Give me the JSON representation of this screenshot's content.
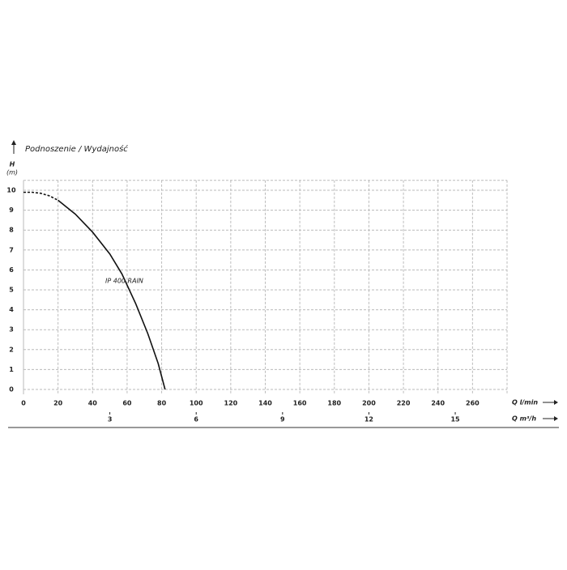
{
  "chart_data": {
    "type": "line",
    "title": "Podnoszenie / Wydajność",
    "y_label": "H",
    "y_unit": "(m)",
    "x_label": "Q l/min",
    "x2_label": "Q m³/h",
    "xlim": [
      0,
      280
    ],
    "xticks": [
      0,
      20,
      40,
      60,
      80,
      100,
      120,
      140,
      160,
      180,
      200,
      220,
      240,
      260
    ],
    "x2lim": [
      0,
      16.8
    ],
    "x2ticks": [
      3,
      6,
      9,
      12,
      15
    ],
    "ylim": [
      0,
      10.5
    ],
    "yticks": [
      0,
      1,
      2,
      3,
      4,
      5,
      6,
      7,
      8,
      9,
      10
    ],
    "grid": true,
    "series": [
      {
        "style": "dashed",
        "color": "#111111",
        "x": [
          0,
          5,
          10,
          15,
          20
        ],
        "values": [
          9.9,
          9.9,
          9.85,
          9.72,
          9.5
        ]
      },
      {
        "name": "IP 400 RAIN",
        "style": "solid",
        "color": "#111111",
        "x": [
          20,
          30,
          40,
          50,
          57,
          65,
          72,
          78,
          82
        ],
        "values": [
          9.5,
          8.8,
          7.9,
          6.8,
          5.8,
          4.3,
          2.8,
          1.3,
          0
        ]
      }
    ]
  }
}
